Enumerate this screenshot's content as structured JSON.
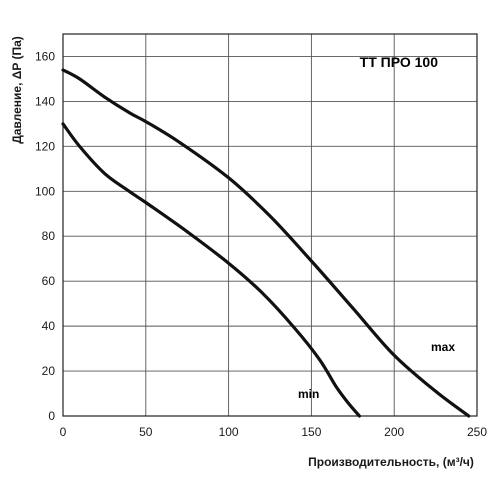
{
  "chart_data": {
    "type": "line",
    "title": "ТТ ПРО 100",
    "xlabel": "Производительность, (м³/ч)",
    "ylabel": "Давление, ΔP (Па)",
    "xlim": [
      0,
      250
    ],
    "ylim": [
      0,
      170
    ],
    "xticks": [
      0,
      50,
      100,
      150,
      200,
      250
    ],
    "yticks": [
      0,
      20,
      40,
      60,
      80,
      100,
      120,
      140,
      160
    ],
    "grid": true,
    "series": [
      {
        "name": "max",
        "x": [
          0,
          10,
          25,
          40,
          50,
          70,
          100,
          125,
          150,
          175,
          200,
          225,
          245
        ],
        "y": [
          154,
          150,
          142,
          135,
          131,
          122,
          106,
          89,
          69,
          48,
          27,
          11,
          0
        ]
      },
      {
        "name": "min",
        "x": [
          0,
          10,
          25,
          40,
          50,
          75,
          100,
          120,
          140,
          155,
          165,
          172,
          179
        ],
        "y": [
          130,
          120,
          108,
          100,
          95,
          82,
          68,
          55,
          39,
          25,
          13,
          6,
          0
        ]
      }
    ]
  }
}
